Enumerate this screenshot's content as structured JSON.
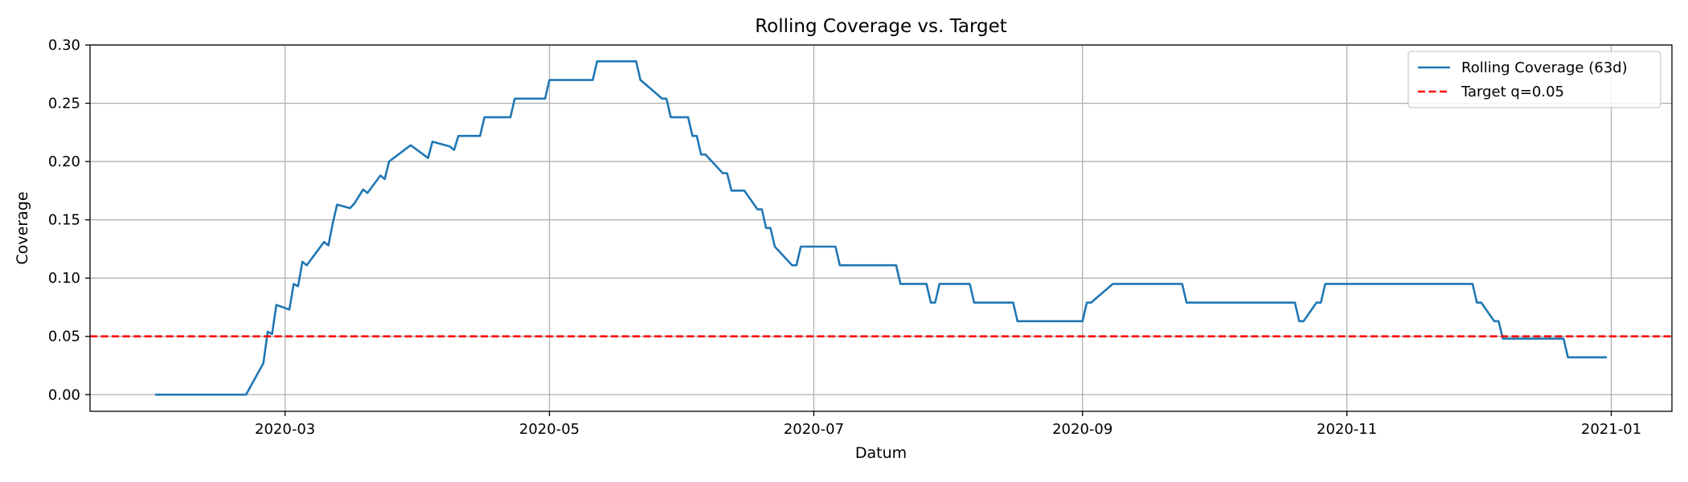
{
  "chart_data": {
    "type": "line",
    "title": "Rolling Coverage vs. Target",
    "xlabel": "Datum",
    "ylabel": "Coverage",
    "xlim": [
      "2020-01-16",
      "2021-01-15"
    ],
    "ylim": [
      -0.0143,
      0.3
    ],
    "x_ticks": [
      "2020-03",
      "2020-05",
      "2020-07",
      "2020-09",
      "2020-11",
      "2021-01"
    ],
    "y_ticks": [
      "0.00",
      "0.05",
      "0.10",
      "0.15",
      "0.20",
      "0.25",
      "0.30"
    ],
    "grid": true,
    "legend_position": "top-right",
    "series": [
      {
        "name": "Rolling Coverage (63d)",
        "color": "#1f77b4",
        "style": "solid",
        "points": [
          [
            "2020-01-31",
            0.0
          ],
          [
            "2020-02-21",
            0.0
          ],
          [
            "2020-02-25",
            0.027
          ],
          [
            "2020-02-26",
            0.054
          ],
          [
            "2020-02-27",
            0.052
          ],
          [
            "2020-02-28",
            0.077
          ],
          [
            "2020-03-02",
            0.073
          ],
          [
            "2020-03-03",
            0.095
          ],
          [
            "2020-03-04",
            0.093
          ],
          [
            "2020-03-05",
            0.114
          ],
          [
            "2020-03-06",
            0.111
          ],
          [
            "2020-03-10",
            0.131
          ],
          [
            "2020-03-11",
            0.128
          ],
          [
            "2020-03-12",
            0.147
          ],
          [
            "2020-03-13",
            0.163
          ],
          [
            "2020-03-16",
            0.16
          ],
          [
            "2020-03-17",
            0.164
          ],
          [
            "2020-03-19",
            0.176
          ],
          [
            "2020-03-20",
            0.173
          ],
          [
            "2020-03-23",
            0.188
          ],
          [
            "2020-03-24",
            0.185
          ],
          [
            "2020-03-25",
            0.2
          ],
          [
            "2020-03-30",
            0.214
          ],
          [
            "2020-04-03",
            0.203
          ],
          [
            "2020-04-04",
            0.217
          ],
          [
            "2020-04-08",
            0.213
          ],
          [
            "2020-04-09",
            0.21
          ],
          [
            "2020-04-10",
            0.222
          ],
          [
            "2020-04-14",
            0.222
          ],
          [
            "2020-04-15",
            0.222
          ],
          [
            "2020-04-16",
            0.238
          ],
          [
            "2020-04-20",
            0.238
          ],
          [
            "2020-04-22",
            0.238
          ],
          [
            "2020-04-23",
            0.254
          ],
          [
            "2020-04-30",
            0.254
          ],
          [
            "2020-05-01",
            0.27
          ],
          [
            "2020-05-11",
            0.27
          ],
          [
            "2020-05-12",
            0.286
          ],
          [
            "2020-05-21",
            0.286
          ],
          [
            "2020-05-22",
            0.27
          ],
          [
            "2020-05-27",
            0.254
          ],
          [
            "2020-05-28",
            0.254
          ],
          [
            "2020-05-29",
            0.238
          ],
          [
            "2020-06-02",
            0.238
          ],
          [
            "2020-06-03",
            0.222
          ],
          [
            "2020-06-04",
            0.222
          ],
          [
            "2020-06-05",
            0.206
          ],
          [
            "2020-06-06",
            0.206
          ],
          [
            "2020-06-10",
            0.19
          ],
          [
            "2020-06-11",
            0.19
          ],
          [
            "2020-06-12",
            0.175
          ],
          [
            "2020-06-15",
            0.175
          ],
          [
            "2020-06-18",
            0.159
          ],
          [
            "2020-06-19",
            0.159
          ],
          [
            "2020-06-20",
            0.143
          ],
          [
            "2020-06-21",
            0.143
          ],
          [
            "2020-06-22",
            0.127
          ],
          [
            "2020-06-26",
            0.111
          ],
          [
            "2020-06-27",
            0.111
          ],
          [
            "2020-06-28",
            0.127
          ],
          [
            "2020-07-06",
            0.127
          ],
          [
            "2020-07-07",
            0.111
          ],
          [
            "2020-07-20",
            0.111
          ],
          [
            "2020-07-21",
            0.095
          ],
          [
            "2020-07-27",
            0.095
          ],
          [
            "2020-07-28",
            0.079
          ],
          [
            "2020-07-29",
            0.079
          ],
          [
            "2020-07-30",
            0.095
          ],
          [
            "2020-08-06",
            0.095
          ],
          [
            "2020-08-07",
            0.079
          ],
          [
            "2020-08-16",
            0.079
          ],
          [
            "2020-08-17",
            0.063
          ],
          [
            "2020-08-31",
            0.063
          ],
          [
            "2020-09-01",
            0.063
          ],
          [
            "2020-09-02",
            0.079
          ],
          [
            "2020-09-03",
            0.079
          ],
          [
            "2020-09-08",
            0.095
          ],
          [
            "2020-09-24",
            0.095
          ],
          [
            "2020-09-25",
            0.079
          ],
          [
            "2020-10-20",
            0.079
          ],
          [
            "2020-10-21",
            0.063
          ],
          [
            "2020-10-22",
            0.063
          ],
          [
            "2020-10-25",
            0.079
          ],
          [
            "2020-10-26",
            0.079
          ],
          [
            "2020-10-27",
            0.095
          ],
          [
            "2020-11-29",
            0.095
          ],
          [
            "2020-11-30",
            0.095
          ],
          [
            "2020-12-01",
            0.079
          ],
          [
            "2020-12-02",
            0.079
          ],
          [
            "2020-12-05",
            0.063
          ],
          [
            "2020-12-06",
            0.063
          ],
          [
            "2020-12-07",
            0.048
          ],
          [
            "2020-12-21",
            0.048
          ],
          [
            "2020-12-22",
            0.032
          ],
          [
            "2020-12-31",
            0.032
          ]
        ]
      },
      {
        "name": "Target q=0.05",
        "color": "#ff0000",
        "style": "dashed",
        "y": 0.05
      }
    ]
  }
}
